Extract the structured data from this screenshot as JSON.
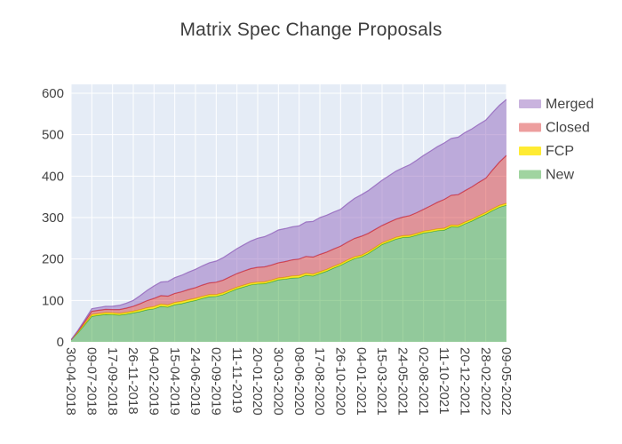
{
  "title": "Matrix Spec Change Proposals",
  "chart_data": {
    "type": "area",
    "stacked": true,
    "title": "Matrix Spec Change Proposals",
    "xlabel": "",
    "ylabel": "",
    "ylim": [
      0,
      600
    ],
    "yticks": [
      0,
      100,
      200,
      300,
      400,
      500,
      600
    ],
    "plot_bg": "#e5ecf6",
    "grid_color": "#ffffff",
    "legend_position": "top-right-outside",
    "x": [
      "30-04-2018",
      "09-07-2018",
      "17-09-2018",
      "26-11-2018",
      "04-02-2019",
      "15-04-2019",
      "24-06-2019",
      "02-09-2019",
      "11-11-2019",
      "20-01-2020",
      "30-03-2020",
      "08-06-2020",
      "17-08-2020",
      "26-10-2020",
      "04-01-2021",
      "15-03-2021",
      "24-05-2021",
      "02-08-2021",
      "11-10-2021",
      "20-12-2021",
      "28-02-2022",
      "09-05-2022"
    ],
    "series": [
      {
        "name": "New",
        "line": "#2ca02c",
        "fill": "rgba(44,160,44,0.45)",
        "values": [
          5,
          62,
          66,
          70,
          80,
          90,
          100,
          110,
          128,
          140,
          150,
          155,
          165,
          185,
          205,
          235,
          252,
          263,
          270,
          285,
          308,
          330
        ]
      },
      {
        "name": "FCP",
        "line": "#e6c700",
        "fill": "rgba(255,230,0,0.8)",
        "values": [
          0,
          4,
          4,
          4,
          5,
          5,
          5,
          4,
          4,
          4,
          4,
          5,
          4,
          4,
          4,
          4,
          4,
          4,
          4,
          4,
          4,
          4
        ]
      },
      {
        "name": "Closed",
        "line": "#d62728",
        "fill": "rgba(214,39,40,0.45)",
        "values": [
          0,
          8,
          8,
          12,
          20,
          22,
          26,
          30,
          33,
          36,
          37,
          40,
          42,
          42,
          46,
          42,
          45,
          53,
          70,
          76,
          83,
          116
        ]
      },
      {
        "name": "Merged",
        "line": "#9467bd",
        "fill": "rgba(148,103,189,0.5)",
        "values": [
          0,
          6,
          8,
          14,
          30,
          38,
          44,
          51,
          60,
          70,
          79,
          80,
          89,
          89,
          100,
          109,
          119,
          130,
          136,
          140,
          140,
          135
        ]
      }
    ],
    "legend": [
      "Merged",
      "Closed",
      "FCP",
      "New"
    ]
  }
}
